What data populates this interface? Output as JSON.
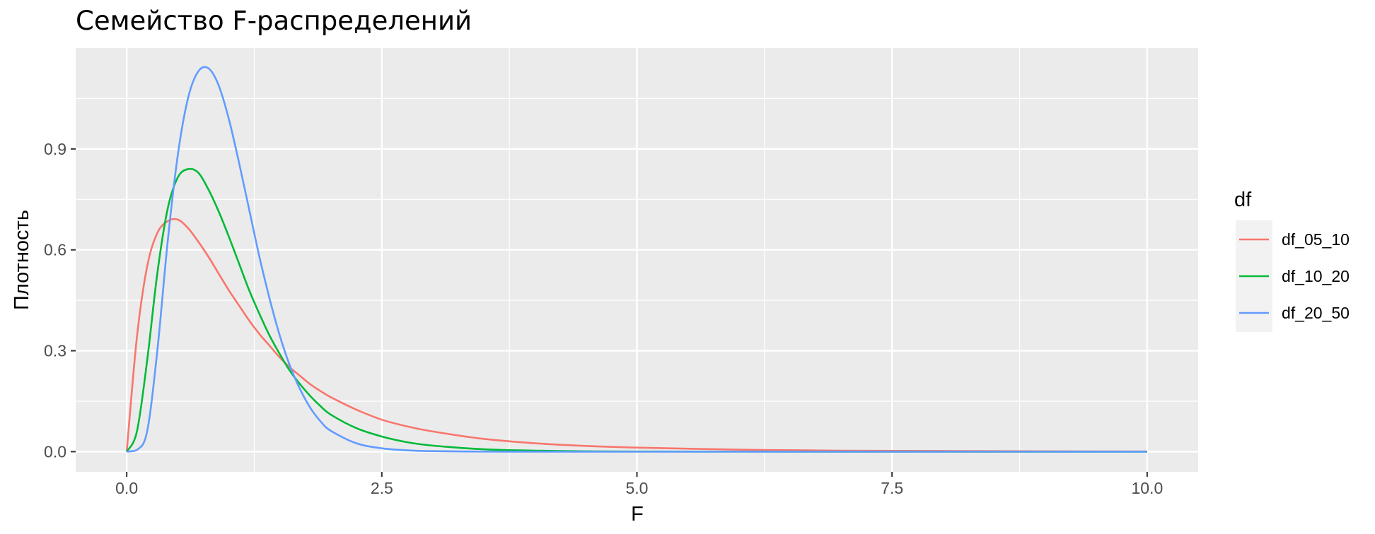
{
  "chart_data": {
    "type": "line",
    "title": "Семейство F-распределений",
    "xlabel": "F",
    "ylabel": "Плотность",
    "xlim": [
      -0.5,
      10.5
    ],
    "ylim": [
      -0.06,
      1.2
    ],
    "x_ticks": [
      0.0,
      2.5,
      5.0,
      7.5,
      10.0
    ],
    "x_tick_labels": [
      "0.0",
      "2.5",
      "5.0",
      "7.5",
      "10.0"
    ],
    "y_ticks": [
      0.0,
      0.3,
      0.6,
      0.9
    ],
    "y_tick_labels": [
      "0.0",
      "0.3",
      "0.6",
      "0.9"
    ],
    "grid": true,
    "legend": {
      "title": "df",
      "position": "right"
    },
    "x": [
      0,
      0.1,
      0.2,
      0.3,
      0.4,
      0.5,
      0.6,
      0.7,
      0.8,
      0.9,
      1.0,
      1.1,
      1.2,
      1.3,
      1.4,
      1.5,
      1.6,
      1.7,
      1.8,
      1.9,
      2.0,
      2.25,
      2.5,
      2.75,
      3.0,
      3.5,
      4.0,
      4.5,
      5.0,
      6.0,
      7.0,
      8.0,
      9.0,
      10.0
    ],
    "series": [
      {
        "name": "df_05_10",
        "color": "#F8766D",
        "values": [
          0,
          0.34,
          0.55,
          0.65,
          0.685,
          0.69,
          0.665,
          0.625,
          0.58,
          0.53,
          0.48,
          0.435,
          0.39,
          0.35,
          0.315,
          0.28,
          0.25,
          0.225,
          0.2,
          0.18,
          0.162,
          0.125,
          0.095,
          0.075,
          0.06,
          0.038,
          0.025,
          0.017,
          0.012,
          0.006,
          0.003,
          0.002,
          0.001,
          0.0005
        ]
      },
      {
        "name": "df_10_20",
        "color": "#00BA38",
        "values": [
          0,
          0.06,
          0.27,
          0.53,
          0.72,
          0.815,
          0.84,
          0.83,
          0.78,
          0.715,
          0.64,
          0.56,
          0.48,
          0.41,
          0.345,
          0.29,
          0.24,
          0.2,
          0.165,
          0.135,
          0.11,
          0.07,
          0.045,
          0.028,
          0.018,
          0.007,
          0.003,
          0.001,
          0.0006,
          0.0001,
          0,
          0,
          0,
          0
        ]
      },
      {
        "name": "df_20_50",
        "color": "#619CFF",
        "values": [
          0,
          0.005,
          0.06,
          0.3,
          0.62,
          0.88,
          1.05,
          1.13,
          1.14,
          1.09,
          0.99,
          0.86,
          0.72,
          0.58,
          0.455,
          0.345,
          0.255,
          0.185,
          0.13,
          0.09,
          0.062,
          0.025,
          0.01,
          0.004,
          0.0015,
          0.0002,
          0,
          0,
          0,
          0,
          0,
          0,
          0,
          0
        ]
      }
    ]
  }
}
